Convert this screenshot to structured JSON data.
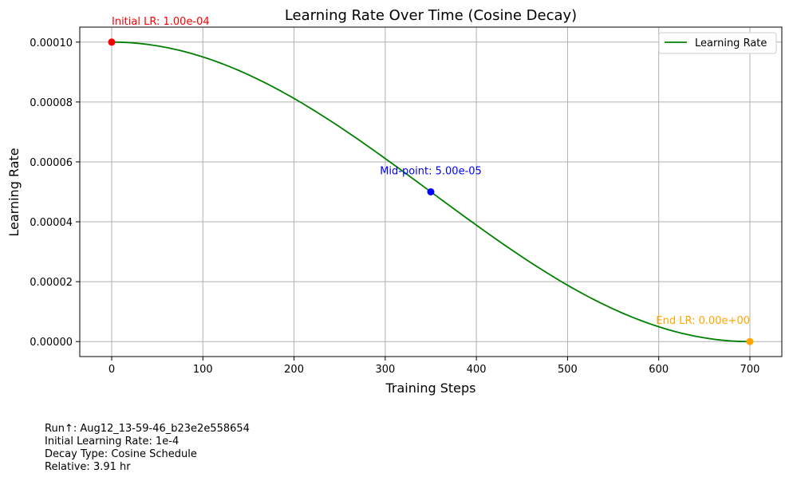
{
  "chart_data": {
    "type": "line",
    "title": "Learning Rate Over Time (Cosine Decay)",
    "xlabel": "Training Steps",
    "ylabel": "Learning Rate",
    "xlim": [
      -35,
      735
    ],
    "ylim": [
      -5e-06,
      0.000105
    ],
    "x_ticks": [
      0,
      100,
      200,
      300,
      400,
      500,
      600,
      700
    ],
    "y_ticks": [
      0.0,
      2e-05,
      4e-05,
      6e-05,
      8e-05,
      0.0001
    ],
    "y_tick_labels": [
      "0.00000",
      "0.00002",
      "0.00004",
      "0.00006",
      "0.00008",
      "0.00010"
    ],
    "grid": true,
    "legend_position": "top-right",
    "series": [
      {
        "name": "Learning Rate",
        "color": "#008000",
        "function": "cosine_decay",
        "initial_lr": 0.0001,
        "total_steps": 700,
        "x": [
          0,
          50,
          100,
          150,
          200,
          250,
          300,
          350,
          400,
          450,
          500,
          550,
          600,
          650,
          700
        ],
        "y": [
          0.0001,
          9.87e-05,
          9.5e-05,
          8.91e-05,
          8.11e-05,
          7.17e-05,
          6.11e-05,
          5e-05,
          3.89e-05,
          2.83e-05,
          1.88e-05,
          1.09e-05,
          5e-06,
          1.3e-06,
          0.0
        ]
      }
    ],
    "markers": [
      {
        "x": 0,
        "y": 0.0001,
        "color": "#ff0000",
        "label": "Initial LR: 1.00e-04",
        "anchor": "start"
      },
      {
        "x": 350,
        "y": 5e-05,
        "color": "#0000ff",
        "label": "Mid-point: 5.00e-05",
        "anchor": "middle"
      },
      {
        "x": 700,
        "y": 0.0,
        "color": "#ffa500",
        "label": "End LR: 0.00e+00",
        "anchor": "end"
      }
    ]
  },
  "info": {
    "run": "Run↑: Aug12_13-59-46_b23e2e558654",
    "initial_lr": "Initial Learning Rate: 1e-4",
    "decay_type": "Decay Type: Cosine Schedule",
    "relative": "Relative: 3.91 hr"
  }
}
